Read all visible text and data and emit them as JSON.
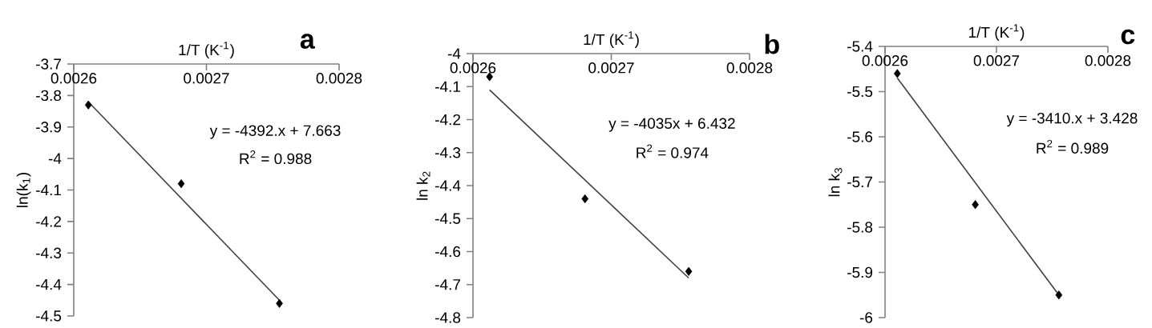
{
  "chart_data": [
    {
      "type": "scatter",
      "title": "a",
      "xlabel": "1/T (K$^{-1}$)",
      "ylabel": "ln(k$_{1}$)",
      "xlim": [
        0.0026,
        0.0028
      ],
      "xticks": [
        0.0026,
        0.0027,
        0.0028
      ],
      "ylim": [
        -4.5,
        -3.7
      ],
      "yticks": [
        -3.7,
        -3.8,
        -3.9,
        -4,
        -4.1,
        -4.2,
        -4.3,
        -4.4,
        -4.5
      ],
      "marker": "diamond",
      "annotations": [
        "y = -4392.x + 7.663",
        "R$^{2}$ = 0.988"
      ],
      "series": [
        {
          "color": "#000000",
          "x": [
            0.002611,
            0.002681,
            0.002755
          ],
          "values": [
            -3.83,
            -4.08,
            -4.46
          ]
        },
        {
          "type": "line",
          "marker": "none",
          "line_style": "solid",
          "color": "#404040",
          "x": [
            0.002611,
            0.002755
          ],
          "values": [
            -3.82,
            -4.45
          ]
        }
      ]
    },
    {
      "type": "scatter",
      "title": "b",
      "xlabel": "1/T (K$^{-1}$)",
      "ylabel": "ln k$_{2}$",
      "xlim": [
        0.0026,
        0.0028
      ],
      "xticks": [
        0.0026,
        0.0027,
        0.0028
      ],
      "ylim": [
        -4.8,
        -4
      ],
      "yticks": [
        -4,
        -4.1,
        -4.2,
        -4.3,
        -4.4,
        -4.5,
        -4.6,
        -4.7,
        -4.8
      ],
      "marker": "diamond",
      "annotations": [
        "y = -4035x + 6.432",
        "R$^{2}$ = 0.974"
      ],
      "series": [
        {
          "color": "#000000",
          "x": [
            0.002612,
            0.002681,
            0.002756
          ],
          "values": [
            -4.07,
            -4.44,
            -4.66
          ]
        },
        {
          "type": "line",
          "marker": "none",
          "line_style": "solid",
          "color": "#404040",
          "x": [
            0.002612,
            0.002756
          ],
          "values": [
            -4.11,
            -4.68
          ]
        }
      ]
    },
    {
      "type": "scatter",
      "title": "c",
      "xlabel": "1/T (K$^{-1}$)",
      "ylabel": "ln k$_{3}$",
      "xlim": [
        0.0026,
        0.0028
      ],
      "xticks": [
        0.0026,
        0.0027,
        0.0028
      ],
      "ylim": [
        -6,
        -5.4
      ],
      "yticks": [
        -5.4,
        -5.5,
        -5.6,
        -5.7,
        -5.8,
        -5.9,
        -6
      ],
      "marker": "diamond",
      "annotations": [
        "y = -3410.x + 3.428",
        "R$^{2}$ = 0.989"
      ],
      "series": [
        {
          "color": "#000000",
          "x": [
            0.002611,
            0.002681,
            0.002756
          ],
          "values": [
            -5.46,
            -5.75,
            -5.95
          ]
        },
        {
          "type": "line",
          "marker": "none",
          "line_style": "solid",
          "color": "#404040",
          "x": [
            0.002611,
            0.002756
          ],
          "values": [
            -5.47,
            -5.95
          ]
        }
      ]
    }
  ]
}
